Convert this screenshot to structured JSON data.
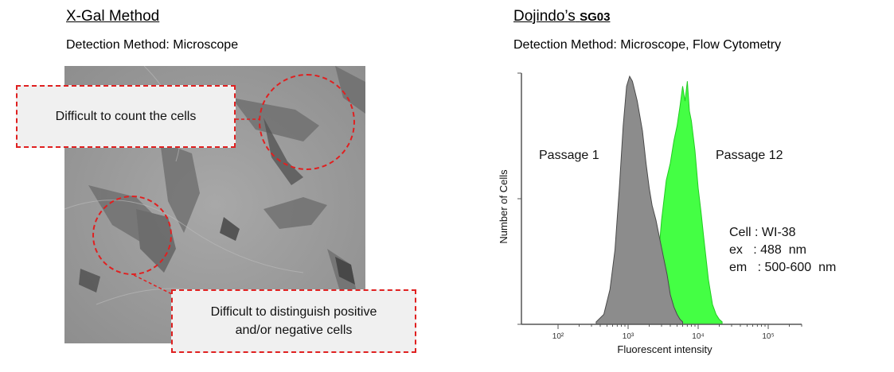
{
  "left_panel": {
    "title": "X-Gal Method",
    "detection_label": "Detection Method: Microscope",
    "callout_top": "Difficult to count the cells",
    "callout_bottom_line1": "Difficult to distinguish positive",
    "callout_bottom_line2": "and/or negative cells"
  },
  "right_panel": {
    "title_prefix": "Dojindo’s",
    "title_product": "SG03",
    "detection_label": "Detection Method: Microscope, Flow Cytometry"
  },
  "colors": {
    "callout_border": "#e02020",
    "passage_1_fill": "#8c8c8c",
    "passage_12_fill": "#44ff44"
  },
  "chart_data": {
    "type": "area",
    "xlabel": "Fluorescent intensity",
    "ylabel": "Number of Cells",
    "x_scale": "log",
    "xlim": [
      30,
      300000
    ],
    "ylim": [
      0,
      1
    ],
    "x_tick_labels": [
      {
        "value": 100,
        "label": "10²"
      },
      {
        "value": 1000,
        "label": "10³"
      },
      {
        "value": 10000,
        "label": "10⁴"
      },
      {
        "value": 100000,
        "label": "10⁵"
      }
    ],
    "series": [
      {
        "name": "Passage 12",
        "color": "#44ff44",
        "x": [
          1500,
          2000,
          2500,
          3000,
          3500,
          4000,
          4500,
          5000,
          5500,
          6000,
          6500,
          7000,
          7500,
          8000,
          9000,
          10000,
          11000,
          12000,
          14000,
          16000,
          18000,
          20000,
          22000
        ],
        "y": [
          0.01,
          0.05,
          0.15,
          0.42,
          0.58,
          0.65,
          0.74,
          0.8,
          0.88,
          0.96,
          0.9,
          0.98,
          0.86,
          0.82,
          0.7,
          0.55,
          0.45,
          0.35,
          0.18,
          0.08,
          0.04,
          0.02,
          0.01
        ]
      },
      {
        "name": "Passage 1",
        "color": "#8c8c8c",
        "x": [
          350,
          450,
          550,
          650,
          750,
          850,
          950,
          1050,
          1150,
          1250,
          1350,
          1450,
          1600,
          1800,
          2000,
          2200,
          2500,
          2800,
          3200,
          3600,
          4000,
          4500,
          5000,
          5500,
          6000
        ],
        "y": [
          0.01,
          0.04,
          0.14,
          0.3,
          0.55,
          0.8,
          0.96,
          1.0,
          0.98,
          0.94,
          0.9,
          0.85,
          0.78,
          0.65,
          0.55,
          0.48,
          0.42,
          0.35,
          0.27,
          0.2,
          0.12,
          0.07,
          0.04,
          0.02,
          0.01
        ]
      }
    ],
    "annotation_lines": [
      "Cell : WI-38",
      "ex   : 488  nm",
      "em   : 500-600  nm"
    ]
  }
}
